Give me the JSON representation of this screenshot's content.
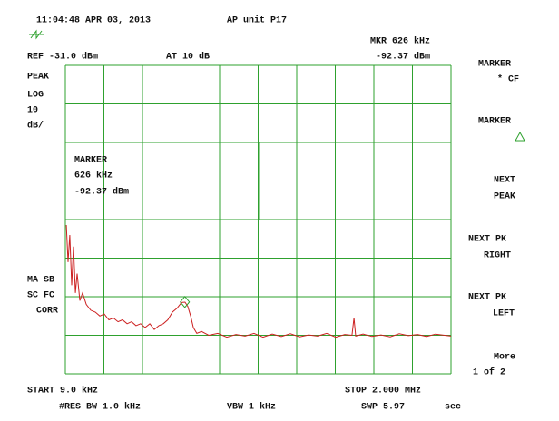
{
  "header": {
    "timestamp": "11:04:48 APR 03, 2013",
    "title": "AP unit P17",
    "marker_freq": "MKR 626 kHz",
    "ref": "REF -31.0  dBm",
    "atten": "AT 10  dB",
    "marker_level": "-92.37 dBm"
  },
  "left_labels": [
    "PEAK",
    "LOG",
    "10",
    "dB/"
  ],
  "left_status": [
    "MA SB",
    "SC FC",
    "CORR"
  ],
  "marker_box": {
    "title": "MARKER",
    "freq": "626 kHz",
    "level": "-92.37 dBm"
  },
  "footer": {
    "start": "START 9.0  kHz",
    "stop": "STOP 2.000  MHz",
    "rbw": "#RES BW 1.0  kHz",
    "vbw": "VBW 1 kHz",
    "sweep": "SWP 5.97",
    "sweep_unit": "sec"
  },
  "softkeys": [
    [
      "MARKER",
      "* CF"
    ],
    [
      "MARKER"
    ],
    [
      "NEXT",
      "PEAK"
    ],
    [
      "NEXT PK",
      "RIGHT"
    ],
    [
      "NEXT PK",
      "LEFT"
    ],
    [
      "More",
      "1 of 2"
    ]
  ],
  "trace": {
    "top": -31,
    "db_per_div": 10,
    "divisions": 8,
    "start": 9,
    "stop": 2000,
    "color": "#cc2020",
    "x": [
      14,
      23,
      32,
      42,
      51,
      61,
      70,
      84,
      98,
      117,
      140,
      164,
      187,
      210,
      234,
      257,
      281,
      304,
      328,
      351,
      374,
      398,
      421,
      445,
      468,
      492,
      515,
      538,
      562,
      585,
      609,
      627,
      641,
      656,
      670,
      688,
      712,
      749,
      796,
      843,
      890,
      937,
      983,
      1030,
      1077,
      1124,
      1171,
      1218,
      1265,
      1311,
      1358,
      1405,
      1452,
      1489,
      1499,
      1508,
      1546,
      1592,
      1639,
      1686,
      1733,
      1780,
      1827,
      1874,
      1920,
      1967,
      2000
    ],
    "values": [
      -72.4,
      -82,
      -75,
      -88,
      -78,
      -90,
      -85,
      -92,
      -90,
      -93,
      -94.5,
      -95,
      -96,
      -95.5,
      -97,
      -96.5,
      -97.5,
      -97,
      -98,
      -97.5,
      -98.5,
      -98,
      -99,
      -98,
      -99.5,
      -98.5,
      -98,
      -97,
      -95,
      -94,
      -92.5,
      -92.4,
      -93.5,
      -96,
      -99,
      -100.5,
      -100,
      -101,
      -100.5,
      -101.5,
      -100.8,
      -101.2,
      -100.5,
      -101.5,
      -100.7,
      -101.3,
      -100.6,
      -101.4,
      -100.9,
      -101.2,
      -100.5,
      -101.5,
      -100.8,
      -101,
      -96.5,
      -101.2,
      -100.7,
      -101.3,
      -100.9,
      -101.4,
      -100.6,
      -101.1,
      -100.8,
      -101.3,
      -100.7,
      -101,
      -101.2
    ]
  },
  "marker": {
    "x": 626,
    "value": -92.37
  }
}
